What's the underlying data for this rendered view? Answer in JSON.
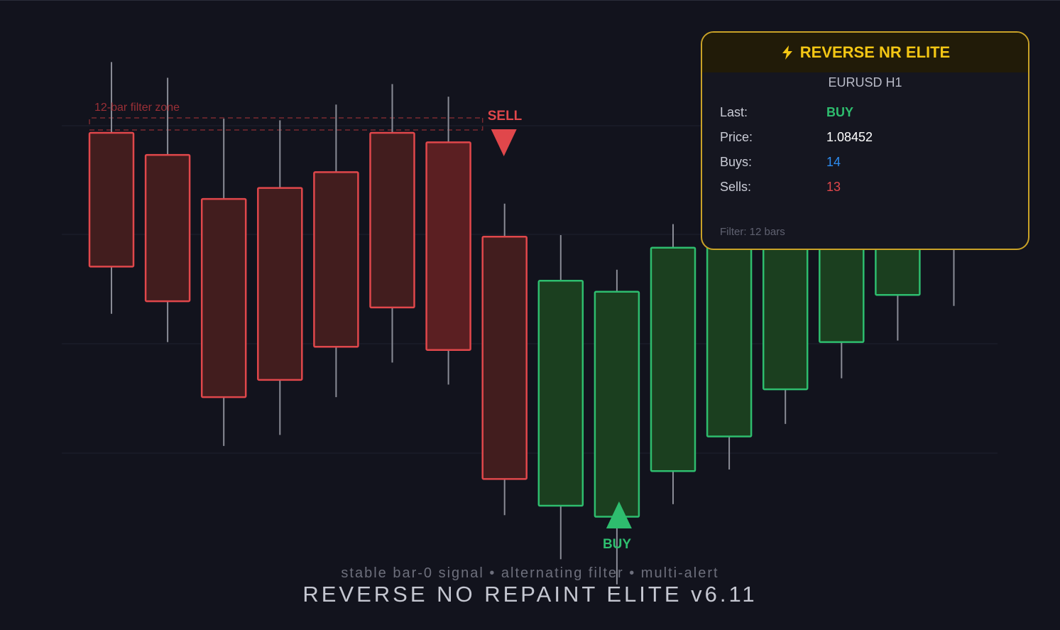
{
  "chart_data": {
    "type": "candlestick",
    "symbol": "EURUSD H1",
    "candles": [
      {
        "dir": "down",
        "open": 0.716,
        "close": 0.631,
        "high": 0.761,
        "low": 0.601
      },
      {
        "dir": "down",
        "open": 0.702,
        "close": 0.609,
        "high": 0.751,
        "low": 0.583
      },
      {
        "dir": "down",
        "open": 0.674,
        "close": 0.548,
        "high": 0.725,
        "low": 0.517
      },
      {
        "dir": "down",
        "open": 0.681,
        "close": 0.559,
        "high": 0.724,
        "low": 0.524
      },
      {
        "dir": "down",
        "open": 0.691,
        "close": 0.58,
        "high": 0.734,
        "low": 0.548
      },
      {
        "dir": "down",
        "open": 0.716,
        "close": 0.605,
        "high": 0.747,
        "low": 0.57
      },
      {
        "dir": "down",
        "open": 0.71,
        "close": 0.578,
        "high": 0.739,
        "low": 0.556
      },
      {
        "dir": "down",
        "open": 0.65,
        "close": 0.496,
        "high": 0.671,
        "low": 0.473
      },
      {
        "dir": "up",
        "open": 0.479,
        "close": 0.622,
        "high": 0.651,
        "low": 0.445
      },
      {
        "dir": "up",
        "open": 0.472,
        "close": 0.615,
        "high": 0.629,
        "low": 0.429
      },
      {
        "dir": "up",
        "open": 0.501,
        "close": 0.643,
        "high": 0.658,
        "low": 0.48
      },
      {
        "dir": "up",
        "open": 0.523,
        "close": 0.67,
        "high": 0.68,
        "low": 0.502
      },
      {
        "dir": "up",
        "open": 0.553,
        "close": 0.667,
        "high": 0.682,
        "low": 0.531
      },
      {
        "dir": "up",
        "open": 0.583,
        "close": 0.683,
        "high": 0.699,
        "low": 0.56
      },
      {
        "dir": "up",
        "open": 0.613,
        "close": 0.683,
        "high": 0.708,
        "low": 0.584
      },
      {
        "dir": "up",
        "open": 0.643,
        "close": 0.674,
        "high": 0.696,
        "low": 0.606
      }
    ],
    "y_range": [
      0.4,
      0.8
    ],
    "signals": [
      {
        "type": "sell",
        "label": "SELL",
        "candle_index": 7
      },
      {
        "type": "buy",
        "label": "BUY",
        "candle_index": 9
      }
    ],
    "filter_zone": {
      "label": "12-bar filter zone",
      "from_index": 0,
      "to_index": 7
    },
    "grid": true,
    "colors": {
      "bear_body": "#421d1e",
      "bear_body_highlight": "#5b1f22",
      "bear_border": "#e0474b",
      "bull_body": "#1b3f1f",
      "bull_border": "#2ebd6e",
      "wick": "#8a8c96",
      "grid": "#1f2130",
      "zone": "#7a2a30"
    }
  },
  "signal_labels": {
    "sell": "SELL",
    "buy": "BUY"
  },
  "zone_label": "12-bar filter zone",
  "panel": {
    "title": "REVERSE NR ELITE",
    "title_icon": "lightning-bolt-icon",
    "symbol": "EURUSD H1",
    "rows": {
      "last": {
        "label": "Last:",
        "value": "BUY"
      },
      "price": {
        "label": "Price:",
        "value": "1.08452"
      },
      "buys": {
        "label": "Buys:",
        "value": "14"
      },
      "sells": {
        "label": "Sells:",
        "value": "13"
      }
    },
    "filter_note": "Filter: 12 bars",
    "border_color": "#c9a227",
    "title_color": "#f3c614"
  },
  "caption": "stable bar-0 signal • alternating filter • multi-alert",
  "main_title": "REVERSE NO REPAINT ELITE v6.11"
}
